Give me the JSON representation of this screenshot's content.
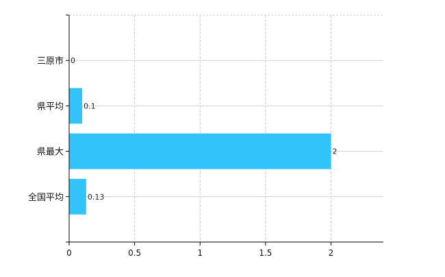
{
  "chart_data": {
    "type": "bar",
    "orientation": "horizontal",
    "categories": [
      "三原市",
      "県平均",
      "県最大",
      "全国平均"
    ],
    "values": [
      0,
      0.1,
      2,
      0.13
    ],
    "value_labels": [
      "0",
      "0.1",
      "2",
      "0.13"
    ],
    "title": "",
    "xlabel": "",
    "ylabel": "",
    "xlim": [
      0,
      2.4
    ],
    "x_ticks": [
      0,
      0.5,
      1,
      1.5,
      2
    ],
    "x_tick_labels": [
      "0",
      "0.5",
      "1",
      "1.5",
      "2"
    ],
    "grid": true,
    "bar_color": "#33c3fb"
  }
}
